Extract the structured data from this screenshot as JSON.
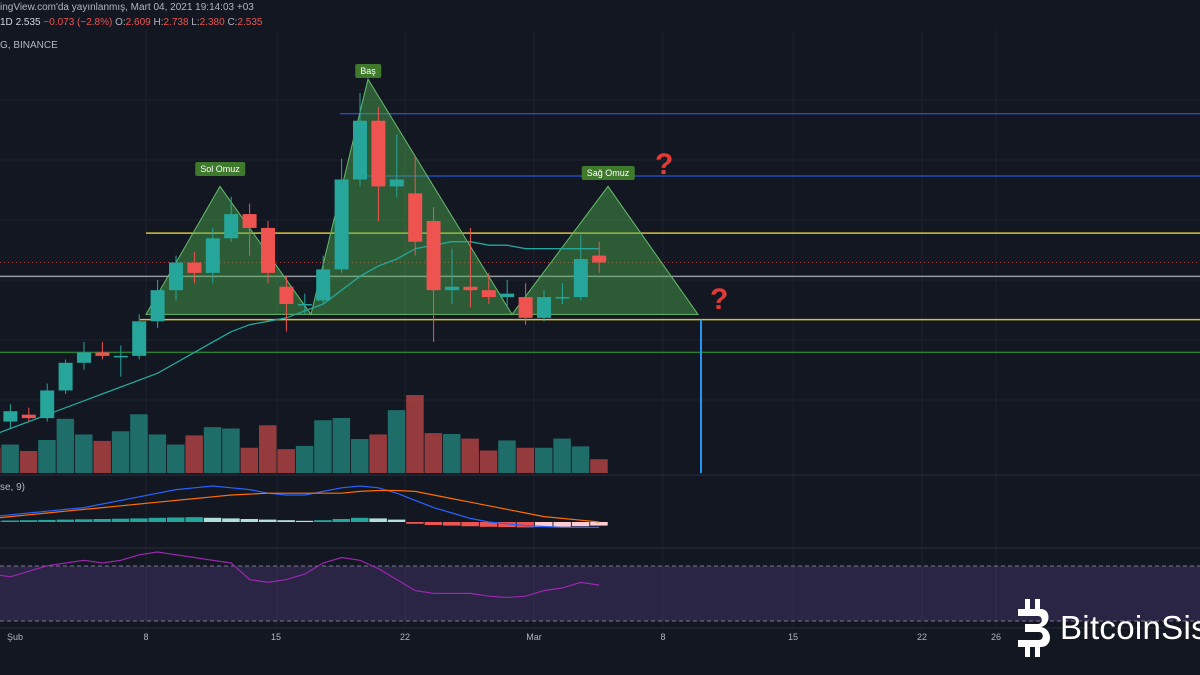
{
  "header": {
    "published": "ingView.com'da yayınlanmış, Mart 04, 2021 19:14:03 +03",
    "interval": "1D",
    "last": "2.535",
    "change": "−0.073 (−2.8%)",
    "o_label": "O:",
    "o_value": "2.609",
    "h_label": "H:",
    "h_value": "2.738",
    "l_label": "L:",
    "l_value": "2.380",
    "c_label": "C:",
    "c_value": "2.535",
    "symbol": "G, BINANCE"
  },
  "macd_label": "se, 9)",
  "annotations": {
    "head": "Baş",
    "left_shoulder": "Sol Omuz",
    "right_shoulder": "Sağ Omuz",
    "question_1": "?",
    "question_2": "?"
  },
  "watermark": "BitcoinSis",
  "colors": {
    "background": "#131722",
    "up": "#26a69a",
    "down": "#ef5350",
    "pattern_fill": "#4caf50",
    "neckline": "#d4c23c",
    "blue_level": "#2962ff",
    "rsi_band": "#7e57c2"
  },
  "chart_data": {
    "type": "candlestick",
    "x_ticks": [
      "Şub",
      "8",
      "15",
      "22",
      "Mar",
      "8",
      "15",
      "22",
      "26"
    ],
    "candles": [
      {
        "o": 2.46,
        "h": 2.49,
        "l": 2.43,
        "c": 2.44
      },
      {
        "o": 2.44,
        "h": 2.49,
        "l": 2.42,
        "c": 2.47
      },
      {
        "o": 2.46,
        "h": 2.48,
        "l": 2.44,
        "c": 2.45
      },
      {
        "o": 2.45,
        "h": 2.55,
        "l": 2.44,
        "c": 2.53
      },
      {
        "o": 2.53,
        "h": 2.62,
        "l": 2.52,
        "c": 2.61
      },
      {
        "o": 2.61,
        "h": 2.67,
        "l": 2.59,
        "c": 2.64
      },
      {
        "o": 2.64,
        "h": 2.67,
        "l": 2.62,
        "c": 2.63
      },
      {
        "o": 2.63,
        "h": 2.66,
        "l": 2.57,
        "c": 2.63
      },
      {
        "o": 2.63,
        "h": 2.75,
        "l": 2.62,
        "c": 2.73
      },
      {
        "o": 2.73,
        "h": 2.85,
        "l": 2.71,
        "c": 2.82
      },
      {
        "o": 2.82,
        "h": 2.92,
        "l": 2.79,
        "c": 2.9
      },
      {
        "o": 2.9,
        "h": 2.93,
        "l": 2.84,
        "c": 2.87
      },
      {
        "o": 2.87,
        "h": 3.0,
        "l": 2.84,
        "c": 2.97
      },
      {
        "o": 2.97,
        "h": 3.09,
        "l": 2.96,
        "c": 3.04
      },
      {
        "o": 3.04,
        "h": 3.07,
        "l": 2.92,
        "c": 3.0
      },
      {
        "o": 3.0,
        "h": 3.02,
        "l": 2.84,
        "c": 2.87
      },
      {
        "o": 2.83,
        "h": 2.86,
        "l": 2.7,
        "c": 2.78
      },
      {
        "o": 2.78,
        "h": 2.81,
        "l": 2.75,
        "c": 2.78
      },
      {
        "o": 2.79,
        "h": 2.92,
        "l": 2.78,
        "c": 2.88
      },
      {
        "o": 2.88,
        "h": 3.2,
        "l": 2.87,
        "c": 3.14
      },
      {
        "o": 3.14,
        "h": 3.39,
        "l": 3.12,
        "c": 3.31
      },
      {
        "o": 3.31,
        "h": 3.35,
        "l": 3.02,
        "c": 3.12
      },
      {
        "o": 3.12,
        "h": 3.27,
        "l": 3.09,
        "c": 3.14
      },
      {
        "o": 3.1,
        "h": 3.21,
        "l": 2.92,
        "c": 2.96
      },
      {
        "o": 3.02,
        "h": 3.06,
        "l": 2.67,
        "c": 2.82
      },
      {
        "o": 2.82,
        "h": 2.94,
        "l": 2.78,
        "c": 2.83
      },
      {
        "o": 2.83,
        "h": 3.0,
        "l": 2.77,
        "c": 2.82
      },
      {
        "o": 2.82,
        "h": 2.87,
        "l": 2.78,
        "c": 2.8
      },
      {
        "o": 2.8,
        "h": 2.85,
        "l": 2.77,
        "c": 2.81
      },
      {
        "o": 2.8,
        "h": 2.84,
        "l": 2.72,
        "c": 2.74
      },
      {
        "o": 2.74,
        "h": 2.82,
        "l": 2.73,
        "c": 2.8
      },
      {
        "o": 2.8,
        "h": 2.84,
        "l": 2.78,
        "c": 2.8
      },
      {
        "o": 2.8,
        "h": 2.98,
        "l": 2.79,
        "c": 2.91
      },
      {
        "o": 2.92,
        "h": 2.96,
        "l": 2.87,
        "c": 2.9
      }
    ],
    "volume": [
      55,
      62,
      48,
      72,
      118,
      84,
      70,
      91,
      128,
      84,
      62,
      82,
      100,
      97,
      55,
      104,
      52,
      59,
      115,
      120,
      74,
      84,
      137,
      170,
      87,
      85,
      75,
      49,
      71,
      55,
      55,
      75,
      58,
      30
    ],
    "ma": [
      2.4,
      2.42,
      2.44,
      2.46,
      2.48,
      2.5,
      2.52,
      2.54,
      2.56,
      2.58,
      2.61,
      2.64,
      2.67,
      2.7,
      2.72,
      2.73,
      2.74,
      2.76,
      2.78,
      2.82,
      2.86,
      2.89,
      2.91,
      2.94,
      2.95,
      2.96,
      2.96,
      2.95,
      2.95,
      2.94,
      2.94,
      2.94,
      2.94,
      2.94
    ],
    "macd_hist": [
      0.2,
      0.25,
      0.3,
      0.35,
      0.4,
      0.45,
      0.5,
      0.55,
      0.6,
      0.7,
      0.75,
      0.8,
      0.7,
      0.6,
      0.5,
      0.4,
      0.3,
      0.2,
      0.3,
      0.5,
      0.7,
      0.6,
      0.4,
      -0.3,
      -0.5,
      -0.6,
      -0.7,
      -0.8,
      -0.85,
      -0.9,
      -0.85,
      -0.8,
      -0.7,
      -0.6
    ],
    "macd_line": [
      0.3,
      0.4,
      0.5,
      0.6,
      0.7,
      0.8,
      1.0,
      1.2,
      1.4,
      1.6,
      1.8,
      1.9,
      2.0,
      1.9,
      1.8,
      1.6,
      1.5,
      1.5,
      1.7,
      1.9,
      2.0,
      1.9,
      1.6,
      1.2,
      0.8,
      0.5,
      0.2,
      0.0,
      -0.1,
      -0.2,
      -0.25,
      -0.3,
      -0.3,
      -0.3
    ],
    "signal_line": [
      0.2,
      0.3,
      0.4,
      0.5,
      0.6,
      0.7,
      0.8,
      0.9,
      1.0,
      1.1,
      1.2,
      1.3,
      1.4,
      1.5,
      1.55,
      1.6,
      1.6,
      1.6,
      1.6,
      1.6,
      1.7,
      1.75,
      1.75,
      1.7,
      1.5,
      1.3,
      1.1,
      0.9,
      0.7,
      0.5,
      0.3,
      0.2,
      0.1,
      0.0
    ],
    "rsi": [
      64,
      62,
      66,
      70,
      72,
      74,
      72,
      74,
      78,
      80,
      78,
      76,
      74,
      72,
      60,
      58,
      60,
      64,
      72,
      76,
      74,
      68,
      60,
      52,
      50,
      50,
      50,
      48,
      47,
      48,
      52,
      54,
      58,
      56
    ],
    "levels": {
      "neckline_upper": 2.985,
      "neckline_lower": 2.735,
      "green_support": 2.64,
      "blue_level_1": 3.33,
      "blue_level_2": 3.15,
      "grey_level": 2.86,
      "red_dotted": 2.9
    },
    "ylim": [
      2.3,
      3.5
    ]
  }
}
